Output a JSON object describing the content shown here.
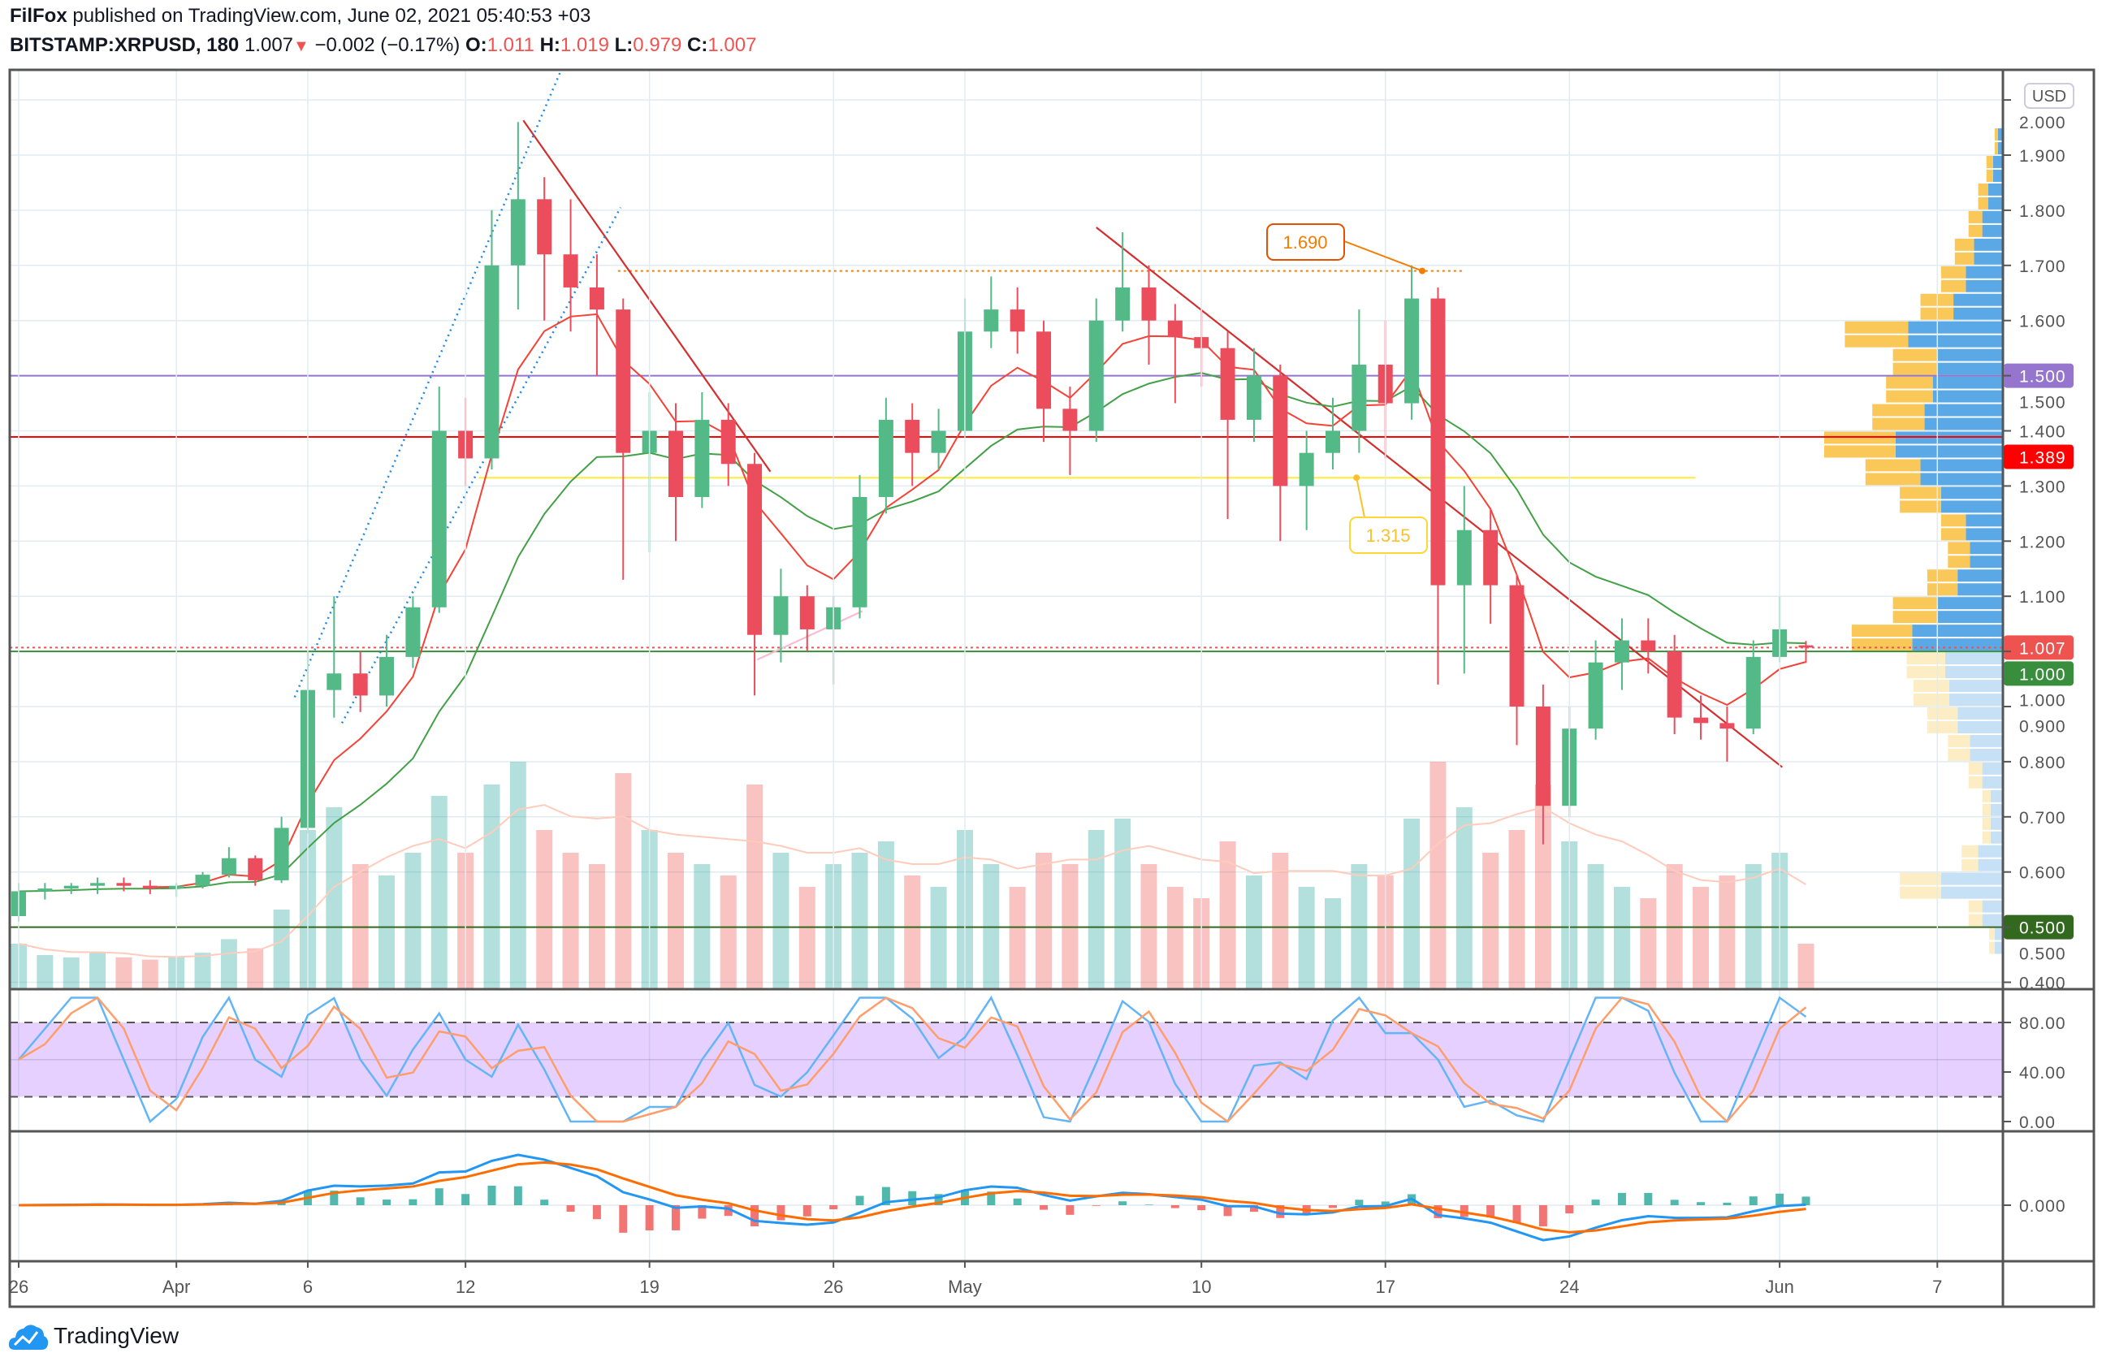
{
  "header": {
    "author": "FilFox",
    "published": " published on TradingView.com, June 02, 2021 05:40:53 +03",
    "symbol": "BITSTAMP:XRPUSD, 180",
    "last": "1.007",
    "change": "−0.002 (−0.17%)",
    "o_label": "O:",
    "o": "1.011",
    "h_label": "H:",
    "h": "1.019",
    "l_label": "L:",
    "l": "0.979",
    "c_label": "C:",
    "c": "1.007"
  },
  "footer": {
    "brand": "TradingView"
  },
  "colors": {
    "up": "#26a69a",
    "down": "#ef5350",
    "up_body": "#53b987",
    "down_body": "#eb4d5c"
  },
  "chart_data": {
    "type": "candlestick",
    "title": "BITSTAMP:XRPUSD, 180",
    "currency": "USD",
    "x_start": "2021-03-26",
    "x_unit": "day",
    "ylim": [
      0.4,
      2.0
    ],
    "y_ticks": [
      "2.000",
      "1.900",
      "1.800",
      "1.700",
      "1.600",
      "1.500",
      "1.400",
      "1.300",
      "1.200",
      "1.100",
      "1.000",
      "0.900",
      "0.800",
      "0.700",
      "0.600",
      "0.500",
      "0.400"
    ],
    "x_ticks": [
      {
        "day": 0,
        "label": "26"
      },
      {
        "day": 6,
        "label": "Apr"
      },
      {
        "day": 11,
        "label": "6"
      },
      {
        "day": 17,
        "label": "12"
      },
      {
        "day": 24,
        "label": "19"
      },
      {
        "day": 31,
        "label": "26"
      },
      {
        "day": 36,
        "label": "May"
      },
      {
        "day": 45,
        "label": "10"
      },
      {
        "day": 52,
        "label": "17"
      },
      {
        "day": 59,
        "label": "24"
      },
      {
        "day": 67,
        "label": "Jun"
      },
      {
        "day": 73,
        "label": "7"
      }
    ],
    "ohlc": [
      [
        0.52,
        0.58,
        0.51,
        0.565
      ],
      [
        0.565,
        0.58,
        0.55,
        0.57
      ],
      [
        0.57,
        0.58,
        0.56,
        0.575
      ],
      [
        0.575,
        0.59,
        0.56,
        0.58
      ],
      [
        0.58,
        0.59,
        0.565,
        0.575
      ],
      [
        0.575,
        0.585,
        0.56,
        0.57
      ],
      [
        0.57,
        0.58,
        0.555,
        0.575
      ],
      [
        0.575,
        0.6,
        0.57,
        0.595
      ],
      [
        0.595,
        0.645,
        0.59,
        0.625
      ],
      [
        0.625,
        0.63,
        0.575,
        0.585
      ],
      [
        0.585,
        0.7,
        0.58,
        0.68
      ],
      [
        0.68,
        1.0,
        0.67,
        0.93
      ],
      [
        0.93,
        1.1,
        0.88,
        0.96
      ],
      [
        0.96,
        1.0,
        0.89,
        0.92
      ],
      [
        0.92,
        1.03,
        0.9,
        0.99
      ],
      [
        0.99,
        1.1,
        0.97,
        1.08
      ],
      [
        1.08,
        1.48,
        1.07,
        1.4
      ],
      [
        1.4,
        1.46,
        1.3,
        1.35
      ],
      [
        1.35,
        1.8,
        1.33,
        1.7
      ],
      [
        1.7,
        1.96,
        1.62,
        1.82
      ],
      [
        1.82,
        1.86,
        1.6,
        1.72
      ],
      [
        1.72,
        1.82,
        1.58,
        1.66
      ],
      [
        1.66,
        1.72,
        1.5,
        1.62
      ],
      [
        1.62,
        1.64,
        1.13,
        1.36
      ],
      [
        1.36,
        1.47,
        1.18,
        1.4
      ],
      [
        1.4,
        1.45,
        1.2,
        1.28
      ],
      [
        1.28,
        1.47,
        1.26,
        1.42
      ],
      [
        1.42,
        1.45,
        1.3,
        1.34
      ],
      [
        1.34,
        1.36,
        0.92,
        1.03
      ],
      [
        1.03,
        1.15,
        0.98,
        1.1
      ],
      [
        1.1,
        1.12,
        1.0,
        1.04
      ],
      [
        1.04,
        1.1,
        0.94,
        1.08
      ],
      [
        1.08,
        1.32,
        1.06,
        1.28
      ],
      [
        1.28,
        1.46,
        1.25,
        1.42
      ],
      [
        1.42,
        1.45,
        1.3,
        1.36
      ],
      [
        1.36,
        1.44,
        1.33,
        1.4
      ],
      [
        1.4,
        1.64,
        1.39,
        1.58
      ],
      [
        1.58,
        1.68,
        1.55,
        1.62
      ],
      [
        1.62,
        1.66,
        1.54,
        1.58
      ],
      [
        1.58,
        1.6,
        1.38,
        1.44
      ],
      [
        1.44,
        1.48,
        1.32,
        1.4
      ],
      [
        1.4,
        1.64,
        1.38,
        1.6
      ],
      [
        1.6,
        1.76,
        1.58,
        1.66
      ],
      [
        1.66,
        1.7,
        1.52,
        1.6
      ],
      [
        1.6,
        1.63,
        1.45,
        1.57
      ],
      [
        1.57,
        1.62,
        1.48,
        1.55
      ],
      [
        1.55,
        1.58,
        1.24,
        1.42
      ],
      [
        1.42,
        1.55,
        1.38,
        1.5
      ],
      [
        1.5,
        1.52,
        1.2,
        1.3
      ],
      [
        1.3,
        1.4,
        1.22,
        1.36
      ],
      [
        1.36,
        1.46,
        1.33,
        1.4
      ],
      [
        1.4,
        1.62,
        1.36,
        1.52
      ],
      [
        1.52,
        1.6,
        1.35,
        1.45
      ],
      [
        1.45,
        1.7,
        1.42,
        1.64
      ],
      [
        1.64,
        1.66,
        0.94,
        1.12
      ],
      [
        1.12,
        1.3,
        0.96,
        1.22
      ],
      [
        1.22,
        1.26,
        1.05,
        1.12
      ],
      [
        1.12,
        1.14,
        0.83,
        0.9
      ],
      [
        0.9,
        0.94,
        0.65,
        0.72
      ],
      [
        0.72,
        0.9,
        0.7,
        0.86
      ],
      [
        0.86,
        1.02,
        0.84,
        0.98
      ],
      [
        0.98,
        1.06,
        0.93,
        1.02
      ],
      [
        1.02,
        1.06,
        0.96,
        1.0
      ],
      [
        1.0,
        1.03,
        0.85,
        0.88
      ],
      [
        0.88,
        0.92,
        0.84,
        0.87
      ],
      [
        0.87,
        0.9,
        0.8,
        0.86
      ],
      [
        0.86,
        1.02,
        0.85,
        0.99
      ],
      [
        0.99,
        1.1,
        0.98,
        1.04
      ],
      [
        1.011,
        1.019,
        0.979,
        1.007
      ]
    ],
    "volume_relative": [
      20,
      15,
      14,
      16,
      14,
      13,
      14,
      16,
      22,
      18,
      35,
      70,
      80,
      55,
      50,
      60,
      85,
      60,
      90,
      100,
      70,
      60,
      55,
      95,
      70,
      60,
      55,
      50,
      90,
      60,
      45,
      55,
      60,
      65,
      50,
      45,
      70,
      55,
      45,
      60,
      55,
      70,
      75,
      55,
      45,
      40,
      65,
      50,
      60,
      45,
      40,
      55,
      50,
      75,
      100,
      80,
      60,
      70,
      90,
      65,
      55,
      45,
      40,
      55,
      45,
      50,
      55,
      60,
      20
    ],
    "price_levels": [
      {
        "price": 1.5,
        "label": "1.500",
        "color": "#9575cd"
      },
      {
        "price": 1.389,
        "label": "1.389",
        "color": "#ff0000"
      },
      {
        "price": 1.007,
        "label": "1.007",
        "color": "#ef5350",
        "style": "dotted"
      },
      {
        "price": 1.0,
        "label": "1.000",
        "color": "#388e3c"
      },
      {
        "price": 0.5,
        "label": "0.500",
        "color": "#33691e"
      }
    ],
    "annotations": [
      {
        "type": "hline-segment",
        "price": 1.69,
        "from_day": 22.8,
        "to_day": 55.0,
        "color": "#f57c00",
        "style": "dotted",
        "callout": "1.690",
        "anchor_day": 53.4
      },
      {
        "type": "hline-segment",
        "price": 1.315,
        "from_day": 17.5,
        "to_day": 63.8,
        "color": "#ffeb3b",
        "callout": "1.315",
        "anchor_day": 50.9
      }
    ],
    "trendlines": [
      {
        "from": [
          19.2,
          1.963
        ],
        "to": [
          28.6,
          1.326
        ],
        "color": "#d32f2f",
        "style": "solid"
      },
      {
        "from": [
          41.0,
          1.769
        ],
        "to": [
          67.1,
          0.79
        ],
        "color": "#d32f2f",
        "style": "solid"
      },
      {
        "from": [
          10.5,
          0.917
        ],
        "to": [
          20.6,
          2.05
        ],
        "color": "#1e88e5",
        "style": "dotted"
      },
      {
        "from": [
          12.3,
          0.87
        ],
        "to": [
          22.9,
          1.805
        ],
        "color": "#1e88e5",
        "style": "dotted"
      },
      {
        "from": [
          28.1,
          0.985
        ],
        "to": [
          32.1,
          1.073
        ],
        "color": "#f8bbd0",
        "style": "solid"
      }
    ],
    "volume_profile": {
      "price_step": 0.05,
      "start_price": 0.45,
      "totals": [
        10,
        25,
        75,
        30,
        15,
        15,
        25,
        40,
        55,
        65,
        70,
        110,
        80,
        55,
        40,
        45,
        75,
        100,
        130,
        95,
        85,
        80,
        115,
        60,
        45,
        35,
        25,
        18,
        12,
        6
      ],
      "value_area": [
        1.0,
        1.95
      ]
    },
    "stoch_rsi": {
      "ticks": [
        "80.00",
        "40.00",
        "0.00"
      ],
      "band": [
        20,
        80
      ]
    },
    "macd": {
      "ticks": [
        "0.000"
      ]
    }
  }
}
